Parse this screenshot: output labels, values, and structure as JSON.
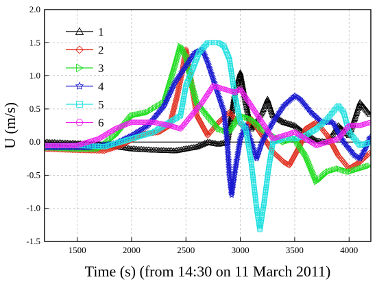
{
  "chart_data": {
    "type": "line",
    "xlabel": "Time (s) (from 14:30 on 11 March 2011)",
    "ylabel": "U (m/s)",
    "xlim": [
      1200,
      4200
    ],
    "ylim": [
      -1.5,
      2.0
    ],
    "xticks": [
      1500,
      2000,
      2500,
      3000,
      3500,
      4000
    ],
    "yticks": [
      -1.5,
      -1.0,
      -0.5,
      0.0,
      0.5,
      1.0,
      1.5,
      2.0
    ],
    "ytick_labels": [
      "-1.5",
      "-1.0",
      "-0.5",
      "0.0",
      "0.5",
      "1.0",
      "1.5",
      "2.0"
    ],
    "grid": true,
    "legend_position": "top-left",
    "series": [
      {
        "name": "1",
        "color": "#000000",
        "marker": "triangle-up",
        "points": [
          [
            1200,
            0.0
          ],
          [
            1500,
            -0.02
          ],
          [
            1800,
            -0.05
          ],
          [
            2000,
            -0.1
          ],
          [
            2200,
            -0.12
          ],
          [
            2400,
            -0.13
          ],
          [
            2600,
            -0.07
          ],
          [
            2700,
            0.0
          ],
          [
            2800,
            -0.03
          ],
          [
            2880,
            0.0
          ],
          [
            2950,
            0.75
          ],
          [
            3000,
            1.05
          ],
          [
            3050,
            0.6
          ],
          [
            3100,
            0.2
          ],
          [
            3200,
            0.45
          ],
          [
            3250,
            0.65
          ],
          [
            3300,
            0.4
          ],
          [
            3400,
            0.3
          ],
          [
            3500,
            0.25
          ],
          [
            3600,
            0.12
          ],
          [
            3700,
            0.02
          ],
          [
            3800,
            0.0
          ],
          [
            3900,
            0.25
          ],
          [
            4000,
            0.1
          ],
          [
            4100,
            0.6
          ],
          [
            4200,
            0.4
          ]
        ]
      },
      {
        "name": "2",
        "color": "#e03020",
        "marker": "diamond",
        "points": [
          [
            1200,
            -0.1
          ],
          [
            1500,
            -0.12
          ],
          [
            1750,
            -0.13
          ],
          [
            1900,
            -0.05
          ],
          [
            2100,
            0.12
          ],
          [
            2250,
            0.15
          ],
          [
            2350,
            0.25
          ],
          [
            2420,
            0.7
          ],
          [
            2470,
            1.1
          ],
          [
            2500,
            1.4
          ],
          [
            2550,
            0.9
          ],
          [
            2600,
            0.4
          ],
          [
            2700,
            0.1
          ],
          [
            2800,
            0.3
          ],
          [
            2900,
            0.45
          ],
          [
            2950,
            0.35
          ],
          [
            3050,
            0.2
          ],
          [
            3100,
            0.35
          ],
          [
            3200,
            0.1
          ],
          [
            3300,
            -0.15
          ],
          [
            3400,
            -0.3
          ],
          [
            3450,
            -0.35
          ],
          [
            3550,
            -0.05
          ],
          [
            3600,
            0.2
          ],
          [
            3700,
            0.3
          ],
          [
            3800,
            0.1
          ],
          [
            3900,
            -0.2
          ],
          [
            4000,
            -0.4
          ],
          [
            4100,
            -0.3
          ],
          [
            4200,
            -0.15
          ]
        ]
      },
      {
        "name": "3",
        "color": "#22dd22",
        "marker": "triangle-right",
        "points": [
          [
            1200,
            -0.08
          ],
          [
            1500,
            -0.1
          ],
          [
            1700,
            -0.1
          ],
          [
            1850,
            0.1
          ],
          [
            2000,
            0.4
          ],
          [
            2150,
            0.45
          ],
          [
            2300,
            0.6
          ],
          [
            2400,
            1.15
          ],
          [
            2450,
            1.45
          ],
          [
            2500,
            1.3
          ],
          [
            2550,
            0.9
          ],
          [
            2600,
            0.6
          ],
          [
            2700,
            0.4
          ],
          [
            2800,
            0.2
          ],
          [
            2900,
            0.15
          ],
          [
            3000,
            0.4
          ],
          [
            3100,
            0.35
          ],
          [
            3200,
            0.2
          ],
          [
            3300,
            0.1
          ],
          [
            3400,
            0.0
          ],
          [
            3500,
            0.05
          ],
          [
            3600,
            -0.2
          ],
          [
            3700,
            -0.6
          ],
          [
            3800,
            -0.45
          ],
          [
            3900,
            -0.4
          ],
          [
            4000,
            -0.45
          ],
          [
            4100,
            -0.4
          ],
          [
            4200,
            -0.35
          ]
        ]
      },
      {
        "name": "4",
        "color": "#1a1ad0",
        "marker": "star",
        "points": [
          [
            1200,
            -0.08
          ],
          [
            1600,
            -0.08
          ],
          [
            1850,
            -0.02
          ],
          [
            2000,
            0.1
          ],
          [
            2150,
            0.25
          ],
          [
            2300,
            0.55
          ],
          [
            2400,
            0.9
          ],
          [
            2500,
            1.15
          ],
          [
            2580,
            1.35
          ],
          [
            2650,
            1.4
          ],
          [
            2700,
            1.2
          ],
          [
            2750,
            0.95
          ],
          [
            2800,
            0.7
          ],
          [
            2850,
            0.45
          ],
          [
            2880,
            0.0
          ],
          [
            2900,
            -0.5
          ],
          [
            2920,
            -0.8
          ],
          [
            2950,
            -0.45
          ],
          [
            3000,
            0.05
          ],
          [
            3050,
            0.25
          ],
          [
            3100,
            0.0
          ],
          [
            3150,
            -0.25
          ],
          [
            3200,
            0.0
          ],
          [
            3300,
            0.3
          ],
          [
            3400,
            0.55
          ],
          [
            3500,
            0.7
          ],
          [
            3550,
            0.65
          ],
          [
            3650,
            0.45
          ],
          [
            3750,
            0.3
          ],
          [
            3850,
            0.3
          ],
          [
            3950,
            0.0
          ],
          [
            4050,
            -0.2
          ],
          [
            4100,
            -0.25
          ],
          [
            4150,
            -0.1
          ],
          [
            4200,
            0.1
          ]
        ]
      },
      {
        "name": "5",
        "color": "#22e0e0",
        "marker": "square",
        "points": [
          [
            1200,
            -0.05
          ],
          [
            1500,
            -0.05
          ],
          [
            1750,
            -0.07
          ],
          [
            2000,
            0.05
          ],
          [
            2200,
            0.15
          ],
          [
            2350,
            0.3
          ],
          [
            2450,
            0.4
          ],
          [
            2500,
            0.85
          ],
          [
            2550,
            1.05
          ],
          [
            2620,
            1.35
          ],
          [
            2700,
            1.5
          ],
          [
            2800,
            1.5
          ],
          [
            2850,
            1.45
          ],
          [
            2900,
            1.25
          ],
          [
            2950,
            0.7
          ],
          [
            3000,
            0.3
          ],
          [
            3050,
            0.2
          ],
          [
            3100,
            -0.3
          ],
          [
            3150,
            -1.0
          ],
          [
            3180,
            -1.32
          ],
          [
            3220,
            -0.9
          ],
          [
            3260,
            -0.4
          ],
          [
            3300,
            0.0
          ],
          [
            3400,
            0.05
          ],
          [
            3500,
            0.05
          ],
          [
            3600,
            0.1
          ],
          [
            3700,
            0.2
          ],
          [
            3800,
            0.35
          ],
          [
            3900,
            0.55
          ],
          [
            3950,
            0.45
          ],
          [
            4000,
            0.15
          ],
          [
            4100,
            -0.05
          ],
          [
            4200,
            0.0
          ]
        ]
      },
      {
        "name": "6",
        "color": "#ee22ee",
        "marker": "circle",
        "points": [
          [
            1200,
            -0.05
          ],
          [
            1500,
            -0.05
          ],
          [
            1700,
            0.05
          ],
          [
            1850,
            0.2
          ],
          [
            2000,
            0.3
          ],
          [
            2200,
            0.3
          ],
          [
            2350,
            0.25
          ],
          [
            2450,
            0.2
          ],
          [
            2550,
            0.4
          ],
          [
            2650,
            0.6
          ],
          [
            2750,
            0.85
          ],
          [
            2850,
            0.8
          ],
          [
            2950,
            0.75
          ],
          [
            3000,
            0.8
          ],
          [
            3100,
            0.55
          ],
          [
            3200,
            0.3
          ],
          [
            3300,
            0.05
          ],
          [
            3400,
            0.1
          ],
          [
            3500,
            0.15
          ],
          [
            3600,
            0.05
          ],
          [
            3700,
            -0.05
          ],
          [
            3800,
            0.0
          ],
          [
            3900,
            0.05
          ],
          [
            4000,
            0.25
          ],
          [
            4100,
            0.25
          ],
          [
            4200,
            0.3
          ]
        ]
      }
    ]
  }
}
